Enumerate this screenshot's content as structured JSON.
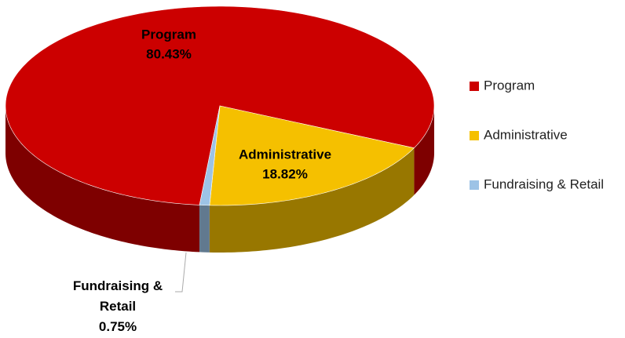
{
  "chart_data": {
    "type": "pie",
    "categories": [
      "Program",
      "Administrative",
      "Fundraising & Retail"
    ],
    "values": [
      80.43,
      18.82,
      0.75
    ],
    "value_labels": [
      "80.43%",
      "18.82%",
      "0.75%"
    ],
    "colors": [
      "#cc0000",
      "#f5c000",
      "#9dc3e6"
    ],
    "legend": "right"
  }
}
